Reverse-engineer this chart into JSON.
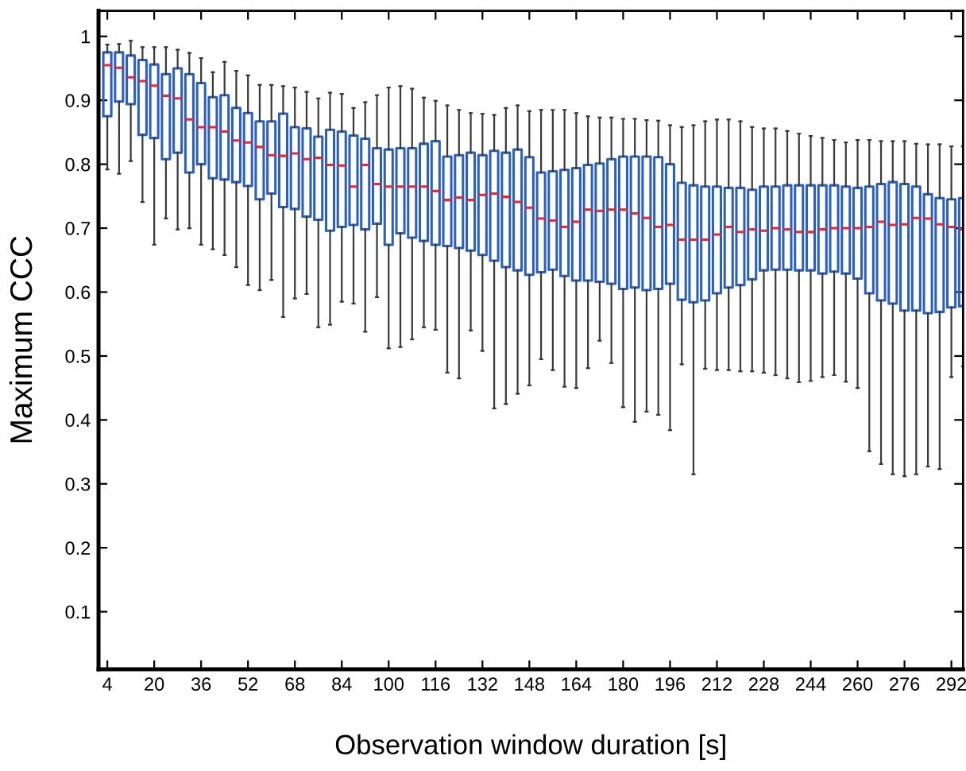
{
  "chart_data": {
    "type": "box",
    "xlabel": "Observation window duration [s]",
    "ylabel": "Maximum CCC",
    "x": [
      4,
      8,
      12,
      16,
      20,
      24,
      28,
      32,
      36,
      40,
      44,
      48,
      52,
      56,
      60,
      64,
      68,
      72,
      76,
      80,
      84,
      88,
      92,
      96,
      100,
      104,
      108,
      112,
      116,
      120,
      124,
      128,
      132,
      136,
      140,
      144,
      148,
      152,
      156,
      160,
      164,
      168,
      172,
      176,
      180,
      184,
      188,
      192,
      196,
      200,
      204,
      208,
      212,
      216,
      220,
      224,
      228,
      232,
      236,
      240,
      244,
      248,
      252,
      256,
      260,
      264,
      268,
      272,
      276,
      280,
      284,
      288,
      292,
      296
    ],
    "xlim": [
      1,
      296
    ],
    "xticks": [
      4,
      20,
      36,
      52,
      68,
      84,
      100,
      116,
      132,
      148,
      164,
      180,
      196,
      212,
      228,
      244,
      260,
      276,
      292
    ],
    "ylim": [
      0.01,
      1.04
    ],
    "yticks": [
      0.1,
      0.2,
      0.3,
      0.4,
      0.5,
      0.6,
      0.7,
      0.8,
      0.9,
      1
    ],
    "grid": false,
    "series": [
      {
        "color": "#2b5fbd",
        "boxes": [
          {
            "low": 0.792,
            "q1": 0.875,
            "median": 0.955,
            "q3": 0.975,
            "high": 0.987
          },
          {
            "low": 0.785,
            "q1": 0.898,
            "median": 0.951,
            "q3": 0.975,
            "high": 0.988
          },
          {
            "low": 0.805,
            "q1": 0.894,
            "median": 0.936,
            "q3": 0.97,
            "high": 0.993
          },
          {
            "low": 0.741,
            "q1": 0.846,
            "median": 0.93,
            "q3": 0.963,
            "high": 0.983
          },
          {
            "low": 0.674,
            "q1": 0.841,
            "median": 0.923,
            "q3": 0.956,
            "high": 0.983
          },
          {
            "low": 0.715,
            "q1": 0.808,
            "median": 0.907,
            "q3": 0.941,
            "high": 0.983
          },
          {
            "low": 0.698,
            "q1": 0.818,
            "median": 0.903,
            "q3": 0.95,
            "high": 0.979
          },
          {
            "low": 0.7,
            "q1": 0.787,
            "median": 0.87,
            "q3": 0.941,
            "high": 0.974
          },
          {
            "low": 0.674,
            "q1": 0.8,
            "median": 0.858,
            "q3": 0.927,
            "high": 0.966
          },
          {
            "low": 0.667,
            "q1": 0.778,
            "median": 0.858,
            "q3": 0.905,
            "high": 0.944
          },
          {
            "low": 0.658,
            "q1": 0.776,
            "median": 0.851,
            "q3": 0.908,
            "high": 0.96
          },
          {
            "low": 0.639,
            "q1": 0.772,
            "median": 0.837,
            "q3": 0.888,
            "high": 0.946
          },
          {
            "low": 0.611,
            "q1": 0.766,
            "median": 0.834,
            "q3": 0.88,
            "high": 0.939
          },
          {
            "low": 0.603,
            "q1": 0.745,
            "median": 0.827,
            "q3": 0.867,
            "high": 0.924
          },
          {
            "low": 0.619,
            "q1": 0.754,
            "median": 0.814,
            "q3": 0.867,
            "high": 0.924
          },
          {
            "low": 0.561,
            "q1": 0.733,
            "median": 0.813,
            "q3": 0.879,
            "high": 0.922
          },
          {
            "low": 0.59,
            "q1": 0.73,
            "median": 0.817,
            "q3": 0.858,
            "high": 0.92
          },
          {
            "low": 0.597,
            "q1": 0.718,
            "median": 0.808,
            "q3": 0.856,
            "high": 0.913
          },
          {
            "low": 0.545,
            "q1": 0.713,
            "median": 0.81,
            "q3": 0.843,
            "high": 0.903
          },
          {
            "low": 0.549,
            "q1": 0.696,
            "median": 0.799,
            "q3": 0.854,
            "high": 0.912
          },
          {
            "low": 0.585,
            "q1": 0.702,
            "median": 0.798,
            "q3": 0.851,
            "high": 0.91
          },
          {
            "low": 0.582,
            "q1": 0.705,
            "median": 0.765,
            "q3": 0.845,
            "high": 0.888
          },
          {
            "low": 0.538,
            "q1": 0.698,
            "median": 0.799,
            "q3": 0.84,
            "high": 0.897
          },
          {
            "low": 0.592,
            "q1": 0.707,
            "median": 0.769,
            "q3": 0.825,
            "high": 0.908
          },
          {
            "low": 0.512,
            "q1": 0.674,
            "median": 0.765,
            "q3": 0.823,
            "high": 0.92
          },
          {
            "low": 0.514,
            "q1": 0.692,
            "median": 0.765,
            "q3": 0.825,
            "high": 0.922
          },
          {
            "low": 0.526,
            "q1": 0.685,
            "median": 0.765,
            "q3": 0.825,
            "high": 0.918
          },
          {
            "low": 0.545,
            "q1": 0.68,
            "median": 0.765,
            "q3": 0.832,
            "high": 0.904
          },
          {
            "low": 0.541,
            "q1": 0.674,
            "median": 0.758,
            "q3": 0.836,
            "high": 0.899
          },
          {
            "low": 0.474,
            "q1": 0.672,
            "median": 0.744,
            "q3": 0.812,
            "high": 0.892
          },
          {
            "low": 0.465,
            "q1": 0.669,
            "median": 0.748,
            "q3": 0.814,
            "high": 0.885
          },
          {
            "low": 0.54,
            "q1": 0.665,
            "median": 0.744,
            "q3": 0.818,
            "high": 0.88
          },
          {
            "low": 0.508,
            "q1": 0.658,
            "median": 0.752,
            "q3": 0.814,
            "high": 0.879
          },
          {
            "low": 0.418,
            "q1": 0.649,
            "median": 0.754,
            "q3": 0.821,
            "high": 0.877
          },
          {
            "low": 0.425,
            "q1": 0.639,
            "median": 0.749,
            "q3": 0.818,
            "high": 0.888
          },
          {
            "low": 0.441,
            "q1": 0.634,
            "median": 0.741,
            "q3": 0.823,
            "high": 0.892
          },
          {
            "low": 0.454,
            "q1": 0.627,
            "median": 0.732,
            "q3": 0.811,
            "high": 0.883
          },
          {
            "low": 0.495,
            "q1": 0.631,
            "median": 0.715,
            "q3": 0.787,
            "high": 0.885
          },
          {
            "low": 0.478,
            "q1": 0.635,
            "median": 0.712,
            "q3": 0.789,
            "high": 0.885
          },
          {
            "low": 0.452,
            "q1": 0.625,
            "median": 0.702,
            "q3": 0.791,
            "high": 0.885
          },
          {
            "low": 0.45,
            "q1": 0.618,
            "median": 0.71,
            "q3": 0.794,
            "high": 0.88
          },
          {
            "low": 0.481,
            "q1": 0.618,
            "median": 0.729,
            "q3": 0.799,
            "high": 0.875
          },
          {
            "low": 0.524,
            "q1": 0.616,
            "median": 0.727,
            "q3": 0.801,
            "high": 0.873
          },
          {
            "low": 0.489,
            "q1": 0.613,
            "median": 0.729,
            "q3": 0.808,
            "high": 0.873
          },
          {
            "low": 0.42,
            "q1": 0.605,
            "median": 0.729,
            "q3": 0.812,
            "high": 0.871
          },
          {
            "low": 0.397,
            "q1": 0.607,
            "median": 0.723,
            "q3": 0.812,
            "high": 0.871
          },
          {
            "low": 0.413,
            "q1": 0.603,
            "median": 0.716,
            "q3": 0.812,
            "high": 0.869
          },
          {
            "low": 0.408,
            "q1": 0.605,
            "median": 0.702,
            "q3": 0.811,
            "high": 0.868
          },
          {
            "low": 0.384,
            "q1": 0.613,
            "median": 0.705,
            "q3": 0.8,
            "high": 0.861
          },
          {
            "low": 0.487,
            "q1": 0.588,
            "median": 0.682,
            "q3": 0.771,
            "high": 0.858
          },
          {
            "low": 0.315,
            "q1": 0.584,
            "median": 0.682,
            "q3": 0.767,
            "high": 0.861
          },
          {
            "low": 0.48,
            "q1": 0.587,
            "median": 0.682,
            "q3": 0.765,
            "high": 0.867
          },
          {
            "low": 0.478,
            "q1": 0.598,
            "median": 0.69,
            "q3": 0.765,
            "high": 0.87
          },
          {
            "low": 0.478,
            "q1": 0.607,
            "median": 0.702,
            "q3": 0.763,
            "high": 0.87
          },
          {
            "low": 0.476,
            "q1": 0.611,
            "median": 0.694,
            "q3": 0.763,
            "high": 0.867
          },
          {
            "low": 0.476,
            "q1": 0.62,
            "median": 0.698,
            "q3": 0.76,
            "high": 0.858
          },
          {
            "low": 0.474,
            "q1": 0.634,
            "median": 0.696,
            "q3": 0.765,
            "high": 0.856
          },
          {
            "low": 0.47,
            "q1": 0.635,
            "median": 0.7,
            "q3": 0.765,
            "high": 0.856
          },
          {
            "low": 0.465,
            "q1": 0.635,
            "median": 0.698,
            "q3": 0.767,
            "high": 0.852
          },
          {
            "low": 0.459,
            "q1": 0.634,
            "median": 0.694,
            "q3": 0.767,
            "high": 0.848
          },
          {
            "low": 0.461,
            "q1": 0.634,
            "median": 0.694,
            "q3": 0.767,
            "high": 0.844
          },
          {
            "low": 0.467,
            "q1": 0.629,
            "median": 0.698,
            "q3": 0.767,
            "high": 0.841
          },
          {
            "low": 0.47,
            "q1": 0.632,
            "median": 0.7,
            "q3": 0.767,
            "high": 0.838
          },
          {
            "low": 0.46,
            "q1": 0.629,
            "median": 0.7,
            "q3": 0.765,
            "high": 0.834
          },
          {
            "low": 0.45,
            "q1": 0.621,
            "median": 0.7,
            "q3": 0.763,
            "high": 0.838
          },
          {
            "low": 0.351,
            "q1": 0.598,
            "median": 0.702,
            "q3": 0.765,
            "high": 0.838
          },
          {
            "low": 0.331,
            "q1": 0.587,
            "median": 0.71,
            "q3": 0.769,
            "high": 0.836
          },
          {
            "low": 0.315,
            "q1": 0.582,
            "median": 0.705,
            "q3": 0.772,
            "high": 0.836
          },
          {
            "low": 0.312,
            "q1": 0.571,
            "median": 0.706,
            "q3": 0.769,
            "high": 0.836
          },
          {
            "low": 0.315,
            "q1": 0.571,
            "median": 0.716,
            "q3": 0.765,
            "high": 0.832
          },
          {
            "low": 0.327,
            "q1": 0.567,
            "median": 0.715,
            "q3": 0.753,
            "high": 0.831
          },
          {
            "low": 0.323,
            "q1": 0.569,
            "median": 0.706,
            "q3": 0.747,
            "high": 0.831
          },
          {
            "low": 0.467,
            "q1": 0.576,
            "median": 0.702,
            "q3": 0.745,
            "high": 0.828
          },
          {
            "low": 0.484,
            "q1": 0.578,
            "median": 0.698,
            "q3": 0.747,
            "high": 0.828
          }
        ]
      }
    ]
  }
}
